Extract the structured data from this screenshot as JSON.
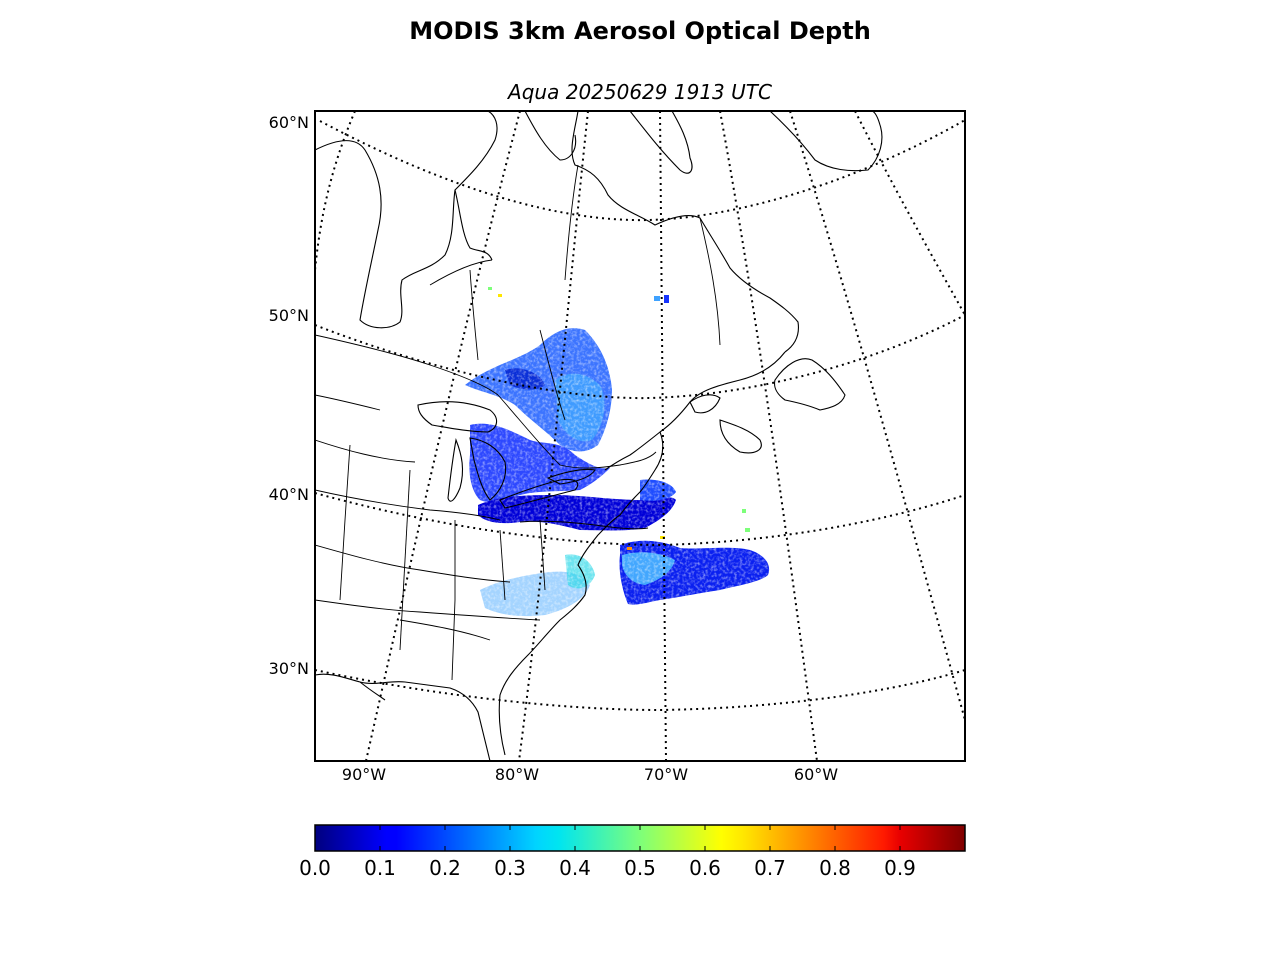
{
  "title": "MODIS 3km Aerosol Optical Depth",
  "subtitle": "Aqua 20250629 1913 UTC",
  "map": {
    "lat_labels": [
      "60°N",
      "50°N",
      "40°N",
      "30°N"
    ],
    "lon_labels": [
      "90°W",
      "80°W",
      "70°W",
      "60°W"
    ],
    "graticule": "dotted",
    "region": "Eastern North America"
  },
  "colorbar": {
    "colormap": "jet",
    "min": 0.0,
    "max": 1.0,
    "tick_labels": [
      "0.0",
      "0.1",
      "0.2",
      "0.3",
      "0.4",
      "0.5",
      "0.6",
      "0.7",
      "0.8",
      "0.9"
    ]
  },
  "colors": {
    "coast": "#000000",
    "graticule": "#000000",
    "low_aod": "#0000ff",
    "mid_aod": "#00c8ff"
  }
}
